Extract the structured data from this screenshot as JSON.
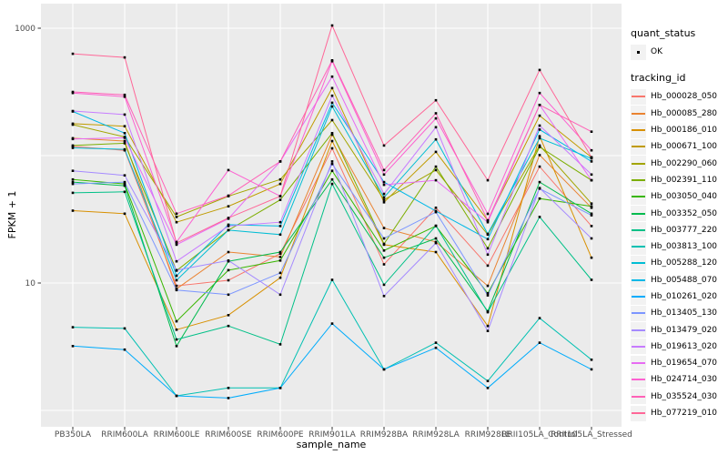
{
  "chart_data": {
    "type": "line",
    "title": "",
    "xlabel": "sample_name",
    "ylabel": "FPKM + 1",
    "y_scale": "log10",
    "grid": true,
    "legend_position": "right",
    "panel_bg": "#EBEBEB",
    "grid_color": "#FFFFFF",
    "point_color": "#000000",
    "tick_label_color": "#4D4D4D",
    "y_ticks": [
      {
        "value": 10,
        "label": "10"
      },
      {
        "value": 1000,
        "label": "1000"
      }
    ],
    "y_minor_gridlines": [
      1,
      100
    ],
    "ylim_log": [
      0.85,
      1400
    ],
    "categories": [
      "PB350LA",
      "RRIM600LA",
      "RRIM600LE",
      "RRIM600SE",
      "RRIM600PE",
      "RRIM901LA",
      "RRIM928BA",
      "RRIM928LA",
      "RRIM928LE",
      "RRII105LA_Control",
      "RRII105LA_Stressed"
    ],
    "series": [
      {
        "tracking_id": "Hb_000028_050",
        "color": "#F8766D",
        "values": [
          118,
          110,
          9.5,
          10.5,
          17,
          114,
          14,
          39,
          13.7,
          82,
          28
        ]
      },
      {
        "tracking_id": "Hb_000085_280",
        "color": "#EA8331",
        "values": [
          137,
          130,
          9.0,
          17.5,
          16,
          146,
          27,
          21,
          9.5,
          101,
          39
        ]
      },
      {
        "tracking_id": "Hb_000186_010",
        "color": "#D89000",
        "values": [
          37,
          35,
          4.3,
          5.6,
          11,
          130,
          20,
          17.5,
          4.6,
          142,
          15.8
        ]
      },
      {
        "tracking_id": "Hb_000671_100",
        "color": "#C09B00",
        "values": [
          178,
          170,
          30,
          40,
          60,
          339,
          43,
          107,
          31,
          206,
          97
        ]
      },
      {
        "tracking_id": "Hb_002290_060",
        "color": "#A3A500",
        "values": [
          175,
          140,
          33,
          48,
          65,
          190,
          45,
          77,
          24,
          120,
          42
        ]
      },
      {
        "tracking_id": "Hb_002391_110",
        "color": "#7CAE00",
        "values": [
          120,
          125,
          12.5,
          26,
          45,
          150,
          20.3,
          82,
          18.7,
          117,
          64
        ]
      },
      {
        "tracking_id": "Hb_003050_040",
        "color": "#39B600",
        "values": [
          65,
          60,
          5.0,
          12.6,
          15,
          76,
          18,
          28,
          8.3,
          46,
          40
        ]
      },
      {
        "tracking_id": "Hb_003352_050",
        "color": "#00BB4E",
        "values": [
          62,
          58,
          3.2,
          14.8,
          17.5,
          65,
          15.8,
          22.4,
          6.0,
          62,
          35
        ]
      },
      {
        "tracking_id": "Hb_003777_220",
        "color": "#00C087",
        "values": [
          51,
          52,
          3.6,
          4.6,
          3.3,
          60,
          9.7,
          28.2,
          5.9,
          33,
          10.6
        ]
      },
      {
        "tracking_id": "Hb_003813_100",
        "color": "#00C0B2",
        "values": [
          4.5,
          4.4,
          1.3,
          1.5,
          1.5,
          10.6,
          2.1,
          3.4,
          1.7,
          5.3,
          2.5
        ]
      },
      {
        "tracking_id": "Hb_005288_120",
        "color": "#00BDD4",
        "values": [
          115,
          112,
          10.5,
          26,
          24,
          243,
          47,
          134,
          24.3,
          137,
          95
        ]
      },
      {
        "tracking_id": "Hb_005488_070",
        "color": "#00B8E7",
        "values": [
          222,
          150,
          11.4,
          28.7,
          28,
          260,
          62,
          36.7,
          22.1,
          160,
          90
        ]
      },
      {
        "tracking_id": "Hb_010261_020",
        "color": "#00ACFC",
        "values": [
          3.2,
          3.0,
          1.3,
          1.25,
          1.5,
          4.8,
          2.1,
          3.1,
          1.5,
          3.4,
          2.1
        ]
      },
      {
        "tracking_id": "Hb_013405_130",
        "color": "#7C96FF",
        "values": [
          60,
          62,
          8.8,
          8.1,
          12,
          86,
          22.4,
          36,
          8.0,
          55,
          34
        ]
      },
      {
        "tracking_id": "Hb_013479_020",
        "color": "#A58AFF",
        "values": [
          76,
          70,
          12.6,
          15,
          8.1,
          90,
          7.9,
          20.6,
          4.2,
          55.6,
          22.4
        ]
      },
      {
        "tracking_id": "Hb_019613_020",
        "color": "#C77CFF",
        "values": [
          224,
          210,
          14.8,
          28,
          30,
          295,
          50,
          167,
          16.7,
          172,
          71
        ]
      },
      {
        "tracking_id": "Hb_019654_070",
        "color": "#E76BF3",
        "values": [
          135,
          138,
          20,
          32,
          90,
          417,
          59,
          64,
          30,
          250,
          64
        ]
      },
      {
        "tracking_id": "Hb_024714_030",
        "color": "#FD61D1",
        "values": [
          310,
          290,
          21,
          77,
          48,
          550,
          71,
          196,
          34.9,
          310,
          110
        ]
      },
      {
        "tracking_id": "Hb_035524_030",
        "color": "#FF61B7",
        "values": [
          316,
          300,
          35,
          48.5,
          90,
          560,
          77,
          215,
          31,
          250,
          154
        ]
      },
      {
        "tracking_id": "Hb_077219_010",
        "color": "#FF6798",
        "values": [
          630,
          590,
          20.6,
          32.4,
          48,
          1050,
          120,
          272,
          64,
          470,
          97
        ]
      }
    ],
    "legend": {
      "quant_status": {
        "title": "quant_status",
        "items": [
          {
            "label": "OK",
            "marker": "black-point"
          }
        ]
      },
      "tracking_id": {
        "title": "tracking_id"
      }
    }
  }
}
